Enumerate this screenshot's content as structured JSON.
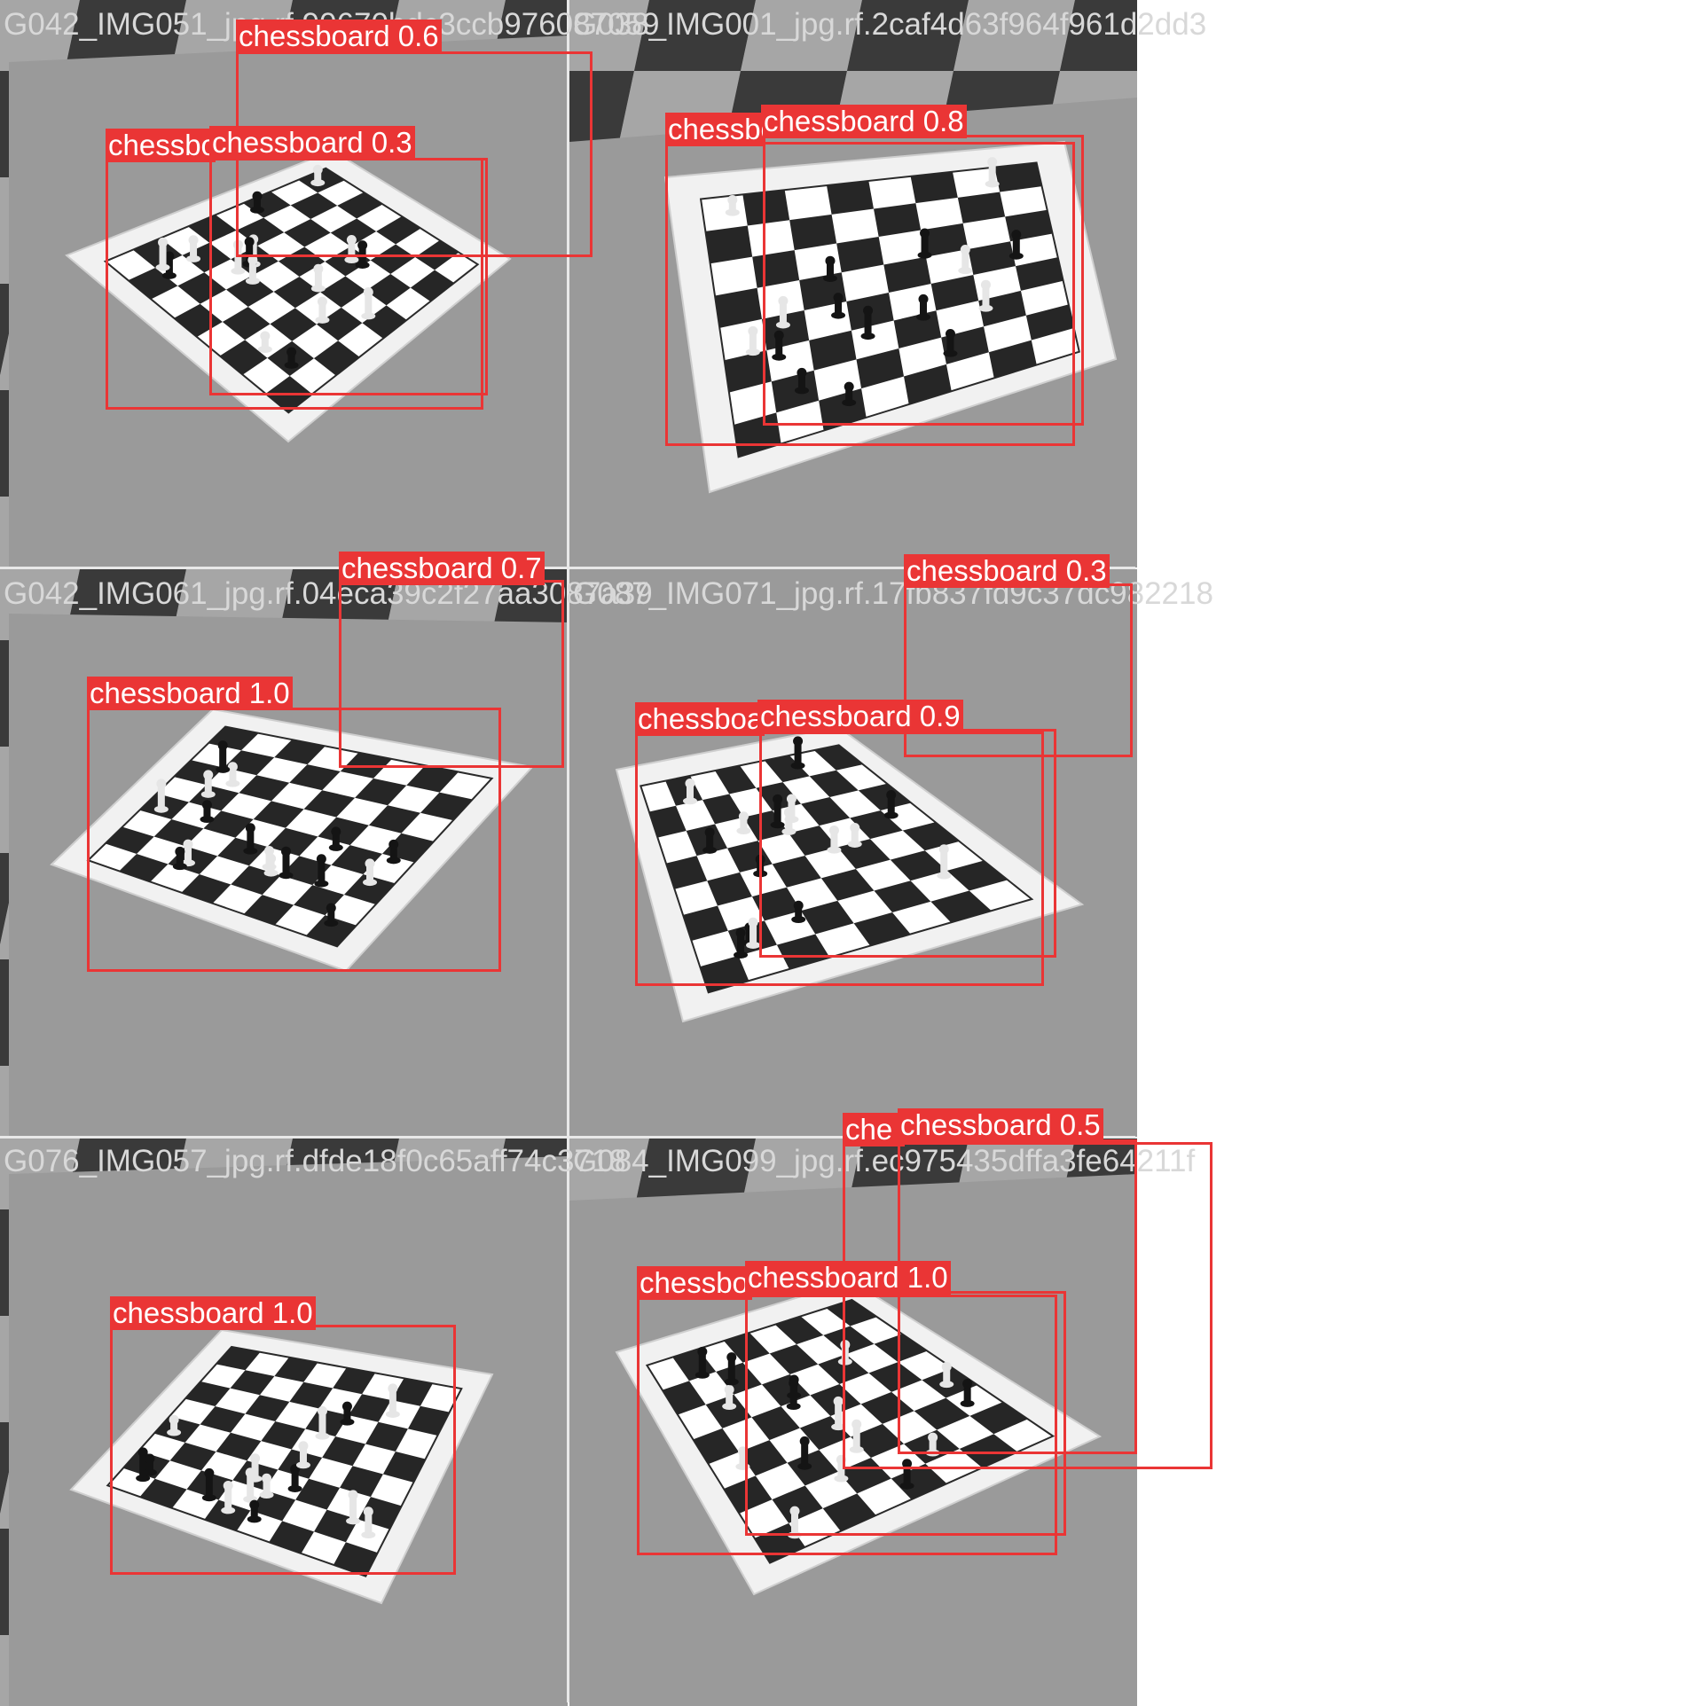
{
  "tiles": [
    {
      "filename": "G042_IMG051_jpg.rf.90670bdc3ccb976087059"
    },
    {
      "filename": "G038_IMG001_jpg.rf.2caf4d63f964f961d2dd3"
    },
    {
      "filename": "G042_IMG061_jpg.rf.04eca39c2f27aa3087a39"
    },
    {
      "filename": "G087_IMG071_jpg.rf.17fb837fd9c37dc982218"
    },
    {
      "filename": "G076_IMG057_jpg.rf.dfde18f0c65aff74c3718"
    },
    {
      "filename": "G084_IMG099_jpg.rf.ec975435dffa3fe64211f"
    }
  ],
  "detections": [
    {
      "tile": 0,
      "label": "chessboard 0.6"
    },
    {
      "tile": 0,
      "label": "chessboard"
    },
    {
      "tile": 0,
      "label": "chessboard 0.3"
    },
    {
      "tile": 1,
      "label": "chessboard 0.8"
    },
    {
      "tile": 1,
      "label": "chessboard"
    },
    {
      "tile": 2,
      "label": "chessboard 0.7"
    },
    {
      "tile": 2,
      "label": "chessboard 1.0"
    },
    {
      "tile": 3,
      "label": "chessboard 0.3"
    },
    {
      "tile": 3,
      "label": "chessboard"
    },
    {
      "tile": 3,
      "label": "chessboard 0.9"
    },
    {
      "tile": 4,
      "label": "chessboard 1.0"
    },
    {
      "tile": 5,
      "label": "che"
    },
    {
      "tile": 5,
      "label": "chessboard 0.5"
    },
    {
      "tile": 5,
      "label": "chessboard"
    },
    {
      "tile": 5,
      "label": "chessboard 1.0"
    }
  ],
  "colors": {
    "box": "#ea3535",
    "label_text": "#ffffff",
    "filename_text": "#d8d8d8"
  }
}
